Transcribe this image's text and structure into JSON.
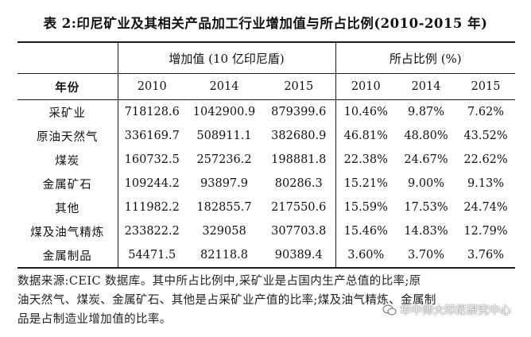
{
  "title": "表 2:印尼矿业及其相关产品加工行业增加值与所占比例(2010-2015 年)",
  "header": {
    "group_value": "增加值 (10 亿印尼盾)",
    "group_share": "所占比例 (%)",
    "year_label": "年份",
    "years": [
      "2010",
      "2014",
      "2015"
    ]
  },
  "rows": [
    {
      "name": "采矿业",
      "values": [
        "718128.6",
        "1042900.9",
        "879399.6"
      ],
      "shares": [
        "10.46%",
        "9.87%",
        "7.62%"
      ]
    },
    {
      "name": "原油天然气",
      "values": [
        "336169.7",
        "508911.1",
        "382680.9"
      ],
      "shares": [
        "46.81%",
        "48.80%",
        "43.52%"
      ]
    },
    {
      "name": "煤炭",
      "values": [
        "160732.5",
        "257236.2",
        "198881.8"
      ],
      "shares": [
        "22.38%",
        "24.67%",
        "22.62%"
      ]
    },
    {
      "name": "金属矿石",
      "values": [
        "109244.2",
        "93897.9",
        "80286.3"
      ],
      "shares": [
        "15.21%",
        "9.00%",
        "9.13%"
      ]
    },
    {
      "name": "其他",
      "values": [
        "111982.2",
        "182855.7",
        "217550.6"
      ],
      "shares": [
        "15.59%",
        "17.53%",
        "24.74%"
      ]
    },
    {
      "name": "煤及油气精炼",
      "values": [
        "233822.2",
        "329058",
        "307703.8"
      ],
      "shares": [
        "15.46%",
        "14.83%",
        "12.79%"
      ]
    },
    {
      "name": "金属制品",
      "values": [
        "54471.5",
        "82118.8",
        "90389.4"
      ],
      "shares": [
        "3.60%",
        "3.70%",
        "3.76%"
      ]
    }
  ],
  "note": {
    "line1": "数据来源:CEIC 数据库。其中所占比例中,采矿业是占国内生产总值的比率;原",
    "line2": "油天然气、煤炭、金属矿石、其他是占采矿业产值的比率;煤及油气精炼、金属制",
    "line3": "品是占制造业增加值的比率。"
  },
  "watermark": {
    "text": "华中师大印尼研究中心",
    "icon": "wechat-icon"
  }
}
